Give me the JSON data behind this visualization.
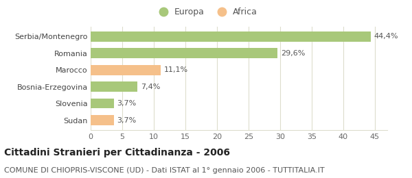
{
  "categories": [
    "Sudan",
    "Slovenia",
    "Bosnia-Erzegovina",
    "Marocco",
    "Romania",
    "Serbia/Montenegro"
  ],
  "values": [
    3.7,
    3.7,
    7.4,
    11.1,
    29.6,
    44.4
  ],
  "labels": [
    "3,7%",
    "3,7%",
    "7,4%",
    "11,1%",
    "29,6%",
    "44,4%"
  ],
  "colors": [
    "#f5c08a",
    "#a8c87a",
    "#a8c87a",
    "#f5c08a",
    "#a8c87a",
    "#a8c87a"
  ],
  "europa_color": "#a8c87a",
  "africa_color": "#f5c08a",
  "xlim": [
    0,
    47
  ],
  "xticks": [
    0,
    5,
    10,
    15,
    20,
    25,
    30,
    35,
    40,
    45
  ],
  "title": "Cittadini Stranieri per Cittadinanza - 2006",
  "subtitle": "COMUNE DI CHIOPRIS-VISCONE (UD) - Dati ISTAT al 1° gennaio 2006 - TUTTITALIA.IT",
  "bg_color": "#ffffff",
  "grid_color": "#ddddcc",
  "title_fontsize": 10,
  "subtitle_fontsize": 8,
  "label_fontsize": 8,
  "tick_fontsize": 8,
  "legend_fontsize": 9,
  "ycat_fontsize": 8
}
